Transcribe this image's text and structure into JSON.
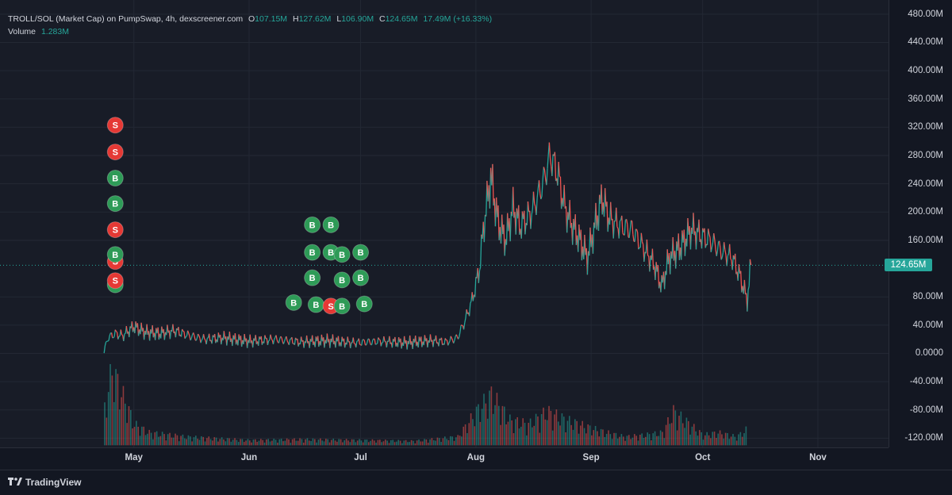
{
  "legend": {
    "title": "TROLL/SOL (Market Cap) on PumpSwap, 4h, dexscreener.com",
    "o_label": "O",
    "o_value": "107.15M",
    "h_label": "H",
    "h_value": "127.62M",
    "l_label": "L",
    "l_value": "106.90M",
    "c_label": "C",
    "c_value": "124.65M",
    "change": "17.49M (+16.33%)",
    "volume_label": "Volume",
    "volume_value": "1.283M"
  },
  "brand": "TradingView",
  "colors": {
    "up": "#26a69a",
    "down": "#ef5350",
    "buy_marker": "#2e9b57",
    "sell_marker": "#e53935",
    "last_price": "#26a69a"
  },
  "chart_data": {
    "type": "line",
    "y_ticks": [
      "480.00M",
      "440.00M",
      "400.00M",
      "360.00M",
      "320.00M",
      "280.00M",
      "240.00M",
      "200.00M",
      "160.00M",
      "124.65M",
      "80.00M",
      "40.00M",
      "0.0000",
      "-40.00M",
      "-80.00M",
      "-120.00M"
    ],
    "y_tick_values": [
      480,
      440,
      400,
      360,
      320,
      280,
      240,
      200,
      160,
      80,
      40,
      0,
      -40,
      -80,
      -120
    ],
    "ylim": [
      -133,
      500
    ],
    "y_unit": "M",
    "last_price_value": 124.65,
    "last_price_label": "124.65M",
    "x_ticks": [
      "May",
      "Jun",
      "Jul",
      "Aug",
      "Sep",
      "Oct",
      "Nov"
    ],
    "x_tick_values": [
      "2025-05-01",
      "2025-06-01",
      "2025-07-01",
      "2025-08-01",
      "2025-09-01",
      "2025-10-01",
      "2025-11-01"
    ],
    "xlim": [
      "2025-03-26",
      "2025-11-20"
    ],
    "series": [
      {
        "x": [
          "2025-04-23",
          "2025-04-24",
          "2025-04-26",
          "2025-04-28",
          "2025-05-01",
          "2025-05-04",
          "2025-05-08",
          "2025-05-12",
          "2025-05-16",
          "2025-05-20",
          "2025-05-25",
          "2025-06-01",
          "2025-06-08",
          "2025-06-15",
          "2025-06-22",
          "2025-06-29",
          "2025-07-06",
          "2025-07-13",
          "2025-07-20",
          "2025-07-24",
          "2025-07-27",
          "2025-07-29",
          "2025-07-31",
          "2025-08-02",
          "2025-08-03",
          "2025-08-05",
          "2025-08-07",
          "2025-08-09",
          "2025-08-11",
          "2025-08-13",
          "2025-08-16",
          "2025-08-19",
          "2025-08-21",
          "2025-08-23",
          "2025-08-25",
          "2025-08-27",
          "2025-08-29",
          "2025-08-31",
          "2025-09-02",
          "2025-09-04",
          "2025-09-06",
          "2025-09-09",
          "2025-09-12",
          "2025-09-15",
          "2025-09-18",
          "2025-09-20",
          "2025-09-22",
          "2025-09-25",
          "2025-09-28",
          "2025-10-01",
          "2025-10-03",
          "2025-10-06",
          "2025-10-09",
          "2025-10-11",
          "2025-10-13",
          "2025-10-14"
        ],
        "values": [
          2,
          22,
          28,
          25,
          38,
          30,
          28,
          32,
          25,
          20,
          22,
          17,
          20,
          16,
          18,
          15,
          17,
          15,
          18,
          16,
          22,
          45,
          75,
          120,
          175,
          250,
          185,
          160,
          205,
          180,
          200,
          240,
          280,
          255,
          205,
          180,
          160,
          135,
          180,
          220,
          190,
          180,
          175,
          150,
          125,
          95,
          135,
          150,
          175,
          165,
          160,
          145,
          135,
          110,
          75,
          125
        ]
      }
    ],
    "volume": {
      "x": [
        "2025-04-23",
        "2025-04-25",
        "2025-05-01",
        "2025-05-05",
        "2025-05-15",
        "2025-06-01",
        "2025-06-15",
        "2025-07-01",
        "2025-07-15",
        "2025-07-27",
        "2025-08-01",
        "2025-08-05",
        "2025-08-10",
        "2025-08-15",
        "2025-08-20",
        "2025-08-25",
        "2025-09-01",
        "2025-09-05",
        "2025-09-10",
        "2025-09-15",
        "2025-09-20",
        "2025-09-23",
        "2025-10-01",
        "2025-10-05",
        "2025-10-10",
        "2025-10-13"
      ],
      "values": [
        45,
        90,
        25,
        15,
        10,
        6,
        7,
        6,
        5,
        10,
        40,
        60,
        30,
        25,
        40,
        30,
        20,
        15,
        10,
        12,
        15,
        40,
        12,
        15,
        10,
        20
      ]
    },
    "markers": [
      {
        "label": "S",
        "x": "2025-04-26",
        "y": 323
      },
      {
        "label": "S",
        "x": "2025-04-26",
        "y": 285
      },
      {
        "label": "B",
        "x": "2025-04-26",
        "y": 248
      },
      {
        "label": "B",
        "x": "2025-04-26",
        "y": 212
      },
      {
        "label": "S",
        "x": "2025-04-26",
        "y": 175
      },
      {
        "label": "S",
        "x": "2025-04-26",
        "y": 130
      },
      {
        "label": "B",
        "x": "2025-04-26",
        "y": 140
      },
      {
        "label": "B",
        "x": "2025-04-26",
        "y": 97
      },
      {
        "label": "S",
        "x": "2025-04-26",
        "y": 103
      },
      {
        "label": "B",
        "x": "2025-06-18",
        "y": 182
      },
      {
        "label": "B",
        "x": "2025-06-23",
        "y": 182
      },
      {
        "label": "B",
        "x": "2025-06-18",
        "y": 143
      },
      {
        "label": "B",
        "x": "2025-06-23",
        "y": 143
      },
      {
        "label": "B",
        "x": "2025-06-26",
        "y": 140
      },
      {
        "label": "B",
        "x": "2025-07-01",
        "y": 143
      },
      {
        "label": "B",
        "x": "2025-06-18",
        "y": 107
      },
      {
        "label": "B",
        "x": "2025-06-26",
        "y": 104
      },
      {
        "label": "B",
        "x": "2025-07-01",
        "y": 107
      },
      {
        "label": "B",
        "x": "2025-06-13",
        "y": 72
      },
      {
        "label": "B",
        "x": "2025-06-19",
        "y": 69
      },
      {
        "label": "S",
        "x": "2025-06-23",
        "y": 67
      },
      {
        "label": "B",
        "x": "2025-06-26",
        "y": 67
      },
      {
        "label": "B",
        "x": "2025-07-02",
        "y": 70
      }
    ]
  }
}
